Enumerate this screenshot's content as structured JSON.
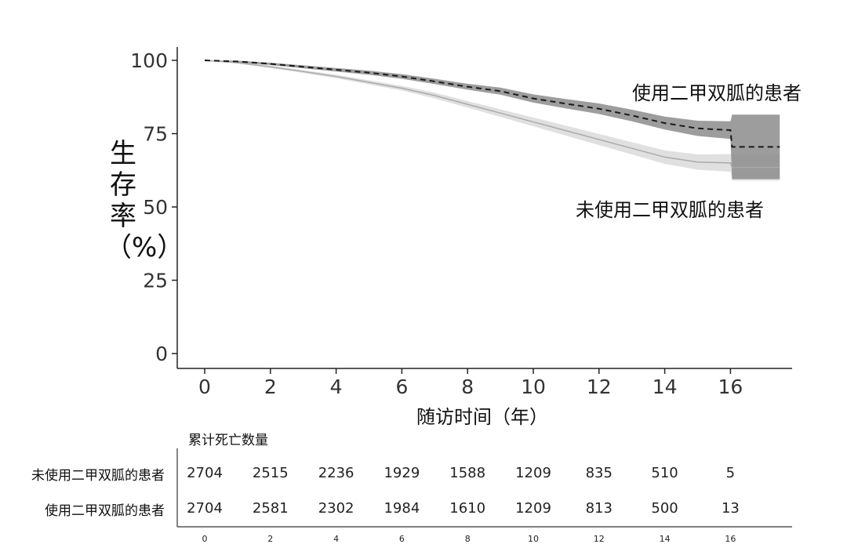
{
  "chart_data": {
    "type": "line",
    "x_ticks": [
      0,
      2,
      4,
      6,
      8,
      10,
      12,
      14,
      16
    ],
    "y_ticks": [
      100,
      75,
      50,
      25,
      0
    ],
    "xlim": [
      0,
      18
    ],
    "ylim": [
      0,
      100
    ],
    "grid": false,
    "xlabel": "随访时间（年）",
    "ylabel": {
      "main": "生存率",
      "unit": "（%）"
    },
    "series": [
      {
        "name": "使用二甲双胍的患者",
        "style": "dashed",
        "color": "#1a1a1a",
        "band_color": "#8c8c8c",
        "x": [
          0,
          1,
          2,
          3,
          4,
          5,
          6,
          7,
          8,
          9,
          10,
          11,
          12,
          13,
          14,
          15,
          16,
          16.05,
          17.5
        ],
        "y": [
          100,
          99.6,
          98.8,
          97.8,
          96.8,
          95.8,
          94.5,
          92.8,
          91,
          89.5,
          87,
          85.2,
          83.5,
          81.2,
          78.6,
          76.8,
          76.2,
          70.5,
          70.5
        ],
        "ci_width": [
          0,
          0.3,
          0.4,
          0.5,
          0.6,
          0.7,
          0.8,
          0.9,
          1,
          1.2,
          1.4,
          1.6,
          1.8,
          2,
          2.2,
          2.6,
          3,
          11,
          11
        ]
      },
      {
        "name": "未使用二甲双胍的患者",
        "style": "solid",
        "color": "#aaaaaa",
        "band_color": "#dddddd",
        "x": [
          0,
          1,
          2,
          3,
          4,
          5,
          6,
          7,
          8,
          9,
          10,
          11,
          12,
          13,
          14,
          15,
          16,
          16.05,
          17.5
        ],
        "y": [
          100,
          99.2,
          97.8,
          96.2,
          94.5,
          92.5,
          90.5,
          88,
          85,
          82,
          79,
          76,
          73,
          70,
          67,
          65.3,
          65,
          63.5,
          63.5
        ],
        "ci_width": [
          0,
          0.3,
          0.4,
          0.5,
          0.6,
          0.7,
          0.8,
          1,
          1.1,
          1.3,
          1.5,
          1.7,
          1.9,
          2.1,
          2.3,
          2.6,
          3,
          4.5,
          4.5
        ]
      }
    ]
  },
  "labels": {
    "metformin": "使用二甲双胍的患者",
    "no_metformin": "未使用二甲双胍的患者"
  },
  "risk_table": {
    "title": "累计死亡数量",
    "times": [
      0,
      2,
      4,
      6,
      8,
      10,
      12,
      14,
      16
    ],
    "rows": [
      {
        "label": "未使用二甲双胍的患者",
        "values": [
          2704,
          2515,
          2236,
          1929,
          1588,
          1209,
          835,
          510,
          5
        ]
      },
      {
        "label": "使用二甲双胍的患者",
        "values": [
          2704,
          2581,
          2302,
          1984,
          1610,
          1209,
          813,
          500,
          13
        ]
      }
    ]
  }
}
